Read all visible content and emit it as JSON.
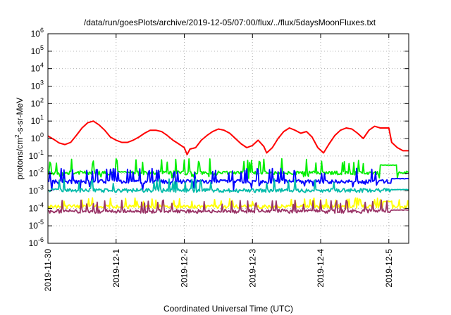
{
  "chart_data": {
    "type": "line",
    "title": "/data/run/goesPlots/archive/2019-12-05/07:00/flux/../flux/5daysMoonFluxes.txt",
    "xlabel": "Coordinated Universal Time (UTC)",
    "ylabel": {
      "prefix": "protons/cm",
      "sup": "2",
      "suffix": "-s-sr-MeV"
    },
    "y_scale": "log",
    "ylim": [
      1e-06,
      1000000.0
    ],
    "y_ticks": [
      {
        "exp": -6,
        "base": "10",
        "sup": "-6"
      },
      {
        "exp": -5,
        "base": "10",
        "sup": "-5"
      },
      {
        "exp": -4,
        "base": "10",
        "sup": "-4"
      },
      {
        "exp": -3,
        "base": "10",
        "sup": "-3"
      },
      {
        "exp": -2,
        "base": "10",
        "sup": "-2"
      },
      {
        "exp": -1,
        "base": "10",
        "sup": "-1"
      },
      {
        "exp": 0,
        "base": "10",
        "sup": "0"
      },
      {
        "exp": 1,
        "base": "10",
        "sup": "1"
      },
      {
        "exp": 2,
        "base": "10",
        "sup": "2"
      },
      {
        "exp": 3,
        "base": "10",
        "sup": "3"
      },
      {
        "exp": 4,
        "base": "10",
        "sup": "4"
      },
      {
        "exp": 5,
        "base": "10",
        "sup": "5"
      },
      {
        "exp": 6,
        "base": "10",
        "sup": "6"
      }
    ],
    "xlim": [
      "2019-11-30T00:00",
      "2019-12-05T07:00"
    ],
    "x_ticks": [
      {
        "t": "2019-11-30T00:00",
        "label": "2019-11-30"
      },
      {
        "t": "2019-12-01T00:00",
        "label": "2019-12-1"
      },
      {
        "t": "2019-12-02T00:00",
        "label": "2019-12-2"
      },
      {
        "t": "2019-12-03T00:00",
        "label": "2019-12-3"
      },
      {
        "t": "2019-12-04T00:00",
        "label": "2019-12-4"
      },
      {
        "t": "2019-12-05T00:00",
        "label": "2019-12-5"
      }
    ],
    "grid": true,
    "series": [
      {
        "color": "#ff0000",
        "style": "smooth",
        "x": [
          "2019-11-30T00:00",
          "2019-11-30T02:00",
          "2019-11-30T04:00",
          "2019-11-30T06:00",
          "2019-11-30T08:00",
          "2019-11-30T10:00",
          "2019-11-30T12:00",
          "2019-11-30T14:00",
          "2019-11-30T16:00",
          "2019-11-30T18:00",
          "2019-11-30T20:00",
          "2019-11-30T22:00",
          "2019-12-01T00:00",
          "2019-12-01T02:00",
          "2019-12-01T04:00",
          "2019-12-01T06:00",
          "2019-12-01T08:00",
          "2019-12-01T10:00",
          "2019-12-01T12:00",
          "2019-12-01T14:00",
          "2019-12-01T16:00",
          "2019-12-01T18:00",
          "2019-12-01T20:00",
          "2019-12-01T22:00",
          "2019-12-02T00:00",
          "2019-12-02T01:00",
          "2019-12-02T02:00",
          "2019-12-02T04:00",
          "2019-12-02T06:00",
          "2019-12-02T08:00",
          "2019-12-02T10:00",
          "2019-12-02T12:00",
          "2019-12-02T14:00",
          "2019-12-02T16:00",
          "2019-12-02T18:00",
          "2019-12-02T20:00",
          "2019-12-02T22:00",
          "2019-12-03T00:00",
          "2019-12-03T02:00",
          "2019-12-03T04:00",
          "2019-12-03T05:00",
          "2019-12-03T07:00",
          "2019-12-03T09:00",
          "2019-12-03T11:00",
          "2019-12-03T13:00",
          "2019-12-03T15:00",
          "2019-12-03T17:00",
          "2019-12-03T19:00",
          "2019-12-03T21:00",
          "2019-12-03T23:00",
          "2019-12-04T01:00",
          "2019-12-04T03:00",
          "2019-12-04T05:00",
          "2019-12-04T07:00",
          "2019-12-04T09:00",
          "2019-12-04T11:00",
          "2019-12-04T13:00",
          "2019-12-04T15:00",
          "2019-12-04T17:00",
          "2019-12-04T19:00",
          "2019-12-04T21:00",
          "2019-12-04T23:00",
          "2019-12-05T00:00",
          "2019-12-05T01:00",
          "2019-12-05T03:00",
          "2019-12-05T05:00",
          "2019-12-05T07:00"
        ],
        "values": [
          1.4,
          0.9,
          0.55,
          0.45,
          0.6,
          1.5,
          4,
          8,
          10,
          6,
          3,
          1.2,
          0.8,
          0.6,
          0.6,
          0.8,
          1.2,
          2,
          3,
          3,
          2.5,
          1.5,
          0.8,
          0.5,
          0.3,
          0.12,
          0.25,
          0.3,
          0.8,
          1.5,
          2.5,
          3.5,
          3,
          2,
          1,
          0.5,
          0.3,
          0.4,
          0.8,
          0.35,
          0.15,
          0.3,
          1,
          2.5,
          4,
          3,
          2,
          2.5,
          1.2,
          0.3,
          0.15,
          0.5,
          1.5,
          3,
          4,
          3.5,
          2,
          1,
          3,
          5,
          4,
          4,
          4,
          0.6,
          0.3,
          0.2,
          0.2
        ]
      },
      {
        "color": "#00ee00",
        "style": "spiky",
        "base": 0.011,
        "spike": 0.07,
        "dip": 0.005,
        "steps": [
          [
            "2019-12-04T21:00",
            0.03
          ],
          [
            "2019-12-05T03:00",
            0.011
          ]
        ]
      },
      {
        "color": "#0000ff",
        "style": "spiky",
        "base": 0.0035,
        "spike": 0.02,
        "dip": 0.001,
        "steps": [
          [
            "2019-12-05T01:00",
            0.005
          ]
        ]
      },
      {
        "color": "#00bbaa",
        "style": "spiky",
        "base": 0.0011,
        "spike": 0.005,
        "dip": 0.0008,
        "steps": [
          [
            "2019-12-05T01:00",
            0.0012
          ]
        ]
      },
      {
        "color": "#ffff00",
        "style": "spiky",
        "base": 0.00013,
        "spike": 0.0004,
        "dip": 0.0001,
        "steps": [
          [
            "2019-12-04T22:00",
            0.00025
          ],
          [
            "2019-12-05T01:00",
            0.00013
          ]
        ]
      },
      {
        "color": "#993366",
        "style": "spiky",
        "base": 7e-05,
        "spike": 0.0003,
        "dip": 6e-05,
        "steps": [
          [
            "2019-12-05T01:00",
            8e-05
          ]
        ]
      }
    ]
  }
}
